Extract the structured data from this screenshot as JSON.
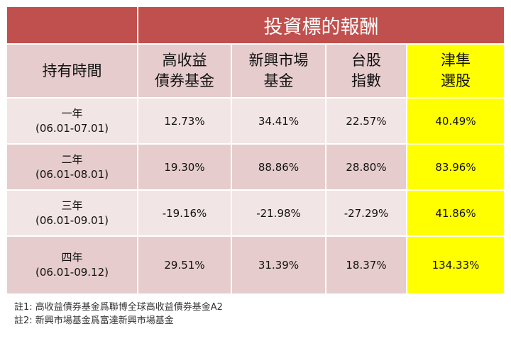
{
  "title": "投資標的報酬",
  "headers": [
    "持有時間",
    "高收益\n債券基金",
    "新興市場\n基金",
    "台股\n指數",
    "津隼\n選股"
  ],
  "highlight_color": "#ffff00",
  "header_color": "#c0504d",
  "rows": [
    {
      "period": "一年",
      "range": "(06.01-07.01)",
      "values": [
        "12.73%",
        "34.41%",
        "22.57%",
        "40.49%"
      ]
    },
    {
      "period": "二年",
      "range": "(06.01-08.01)",
      "values": [
        "19.30%",
        "88.86%",
        "28.80%",
        "83.96%"
      ]
    },
    {
      "period": "三年",
      "range": "(06.01-09.01)",
      "values": [
        "-19.16%",
        "-21.98%",
        "-27.29%",
        "41.86%"
      ]
    },
    {
      "period": "四年",
      "range": "(06.01-09.12)",
      "values": [
        "29.51%",
        "31.39%",
        "18.37%",
        "134.33%"
      ]
    }
  ],
  "notes": [
    "註1: 高收益債券基金爲聯博全球高收益債券基金A2",
    "註2: 新興市場基金爲富達新興市場基金"
  ]
}
